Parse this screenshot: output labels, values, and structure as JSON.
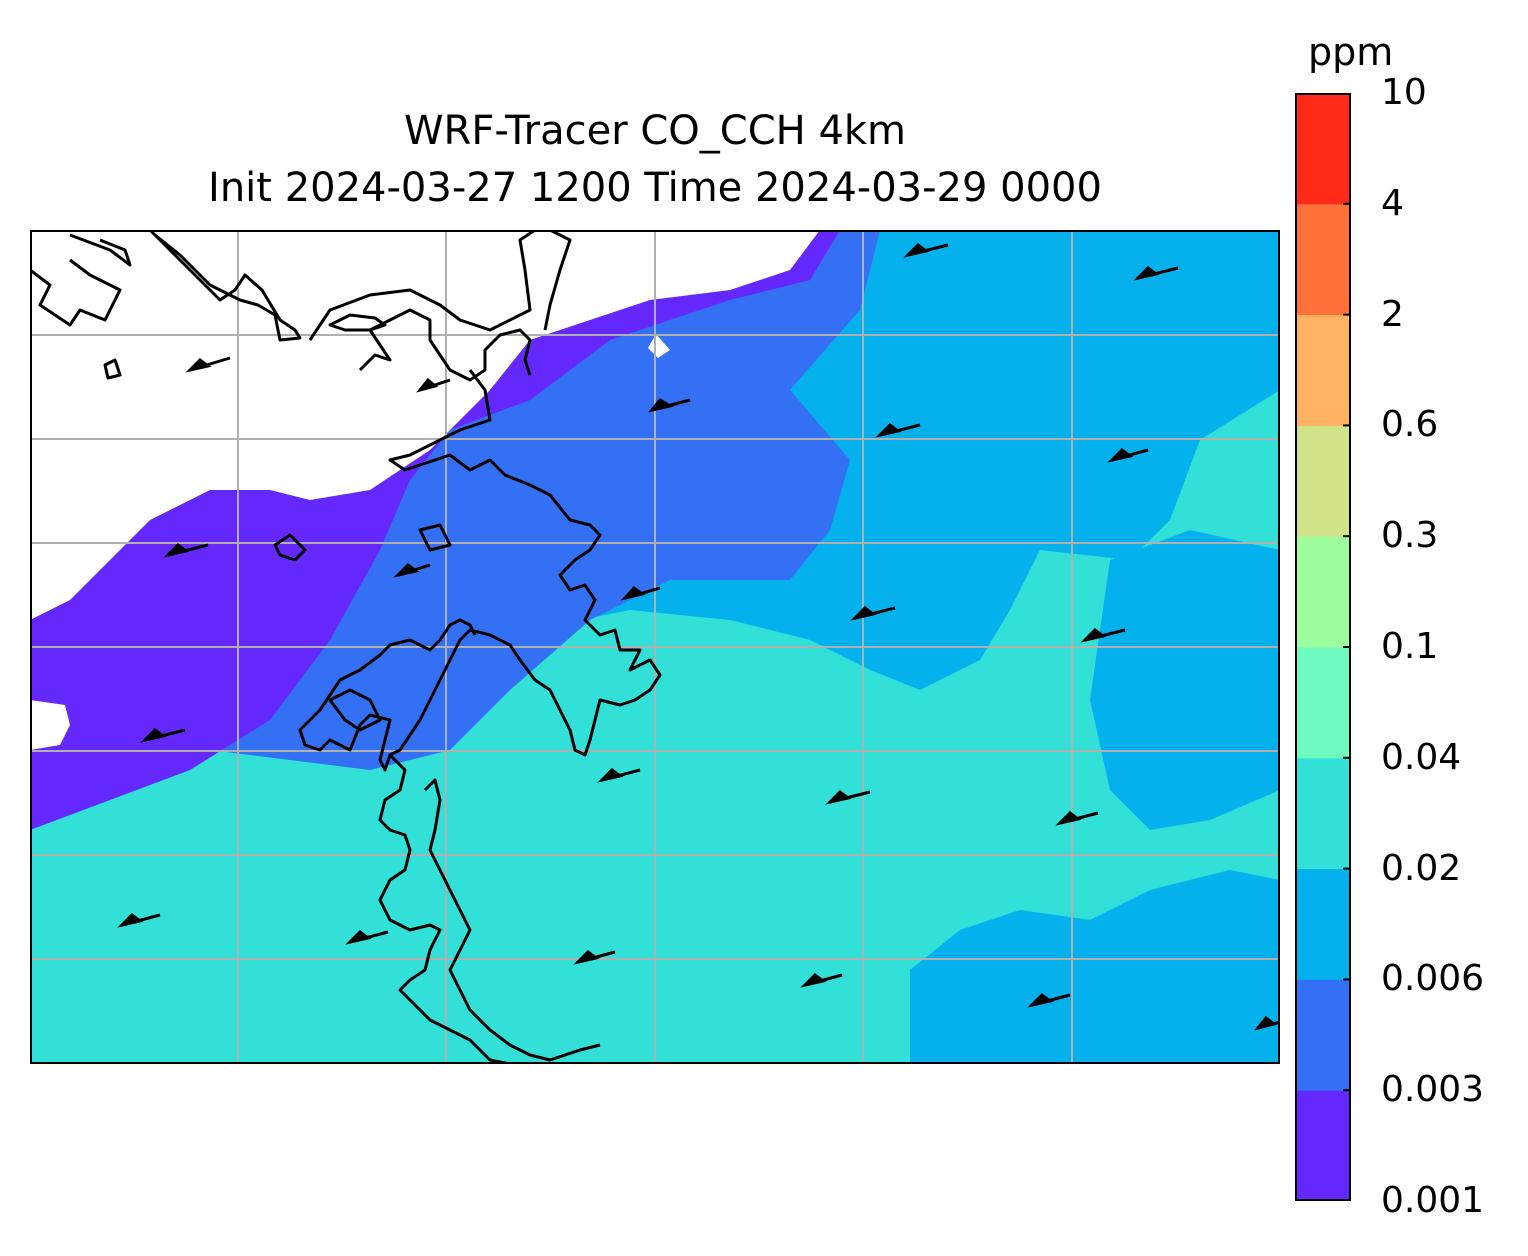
{
  "title": {
    "line1": "WRF-Tracer CO_CCH 4km",
    "line2": "Init 2024-03-27 1200 Time 2024-03-29 0000"
  },
  "colorbar": {
    "unit": "ppm",
    "levels": [
      "0.001",
      "0.003",
      "0.006",
      "0.02",
      "0.04",
      "0.1",
      "0.3",
      "0.6",
      "2",
      "4",
      "10"
    ],
    "colors": [
      "#6528fc",
      "#3470f3",
      "#04b1ec",
      "#32e0d8",
      "#6ffbbf",
      "#9dfe9f",
      "#d1e389",
      "#ffb362",
      "#ff703b",
      "#ff2a18"
    ]
  },
  "map": {
    "background_color": "#ffffff",
    "coastline_color": "#000000",
    "gridline_color": "#b0b0b0",
    "wind_barb_color": "#000000"
  }
}
